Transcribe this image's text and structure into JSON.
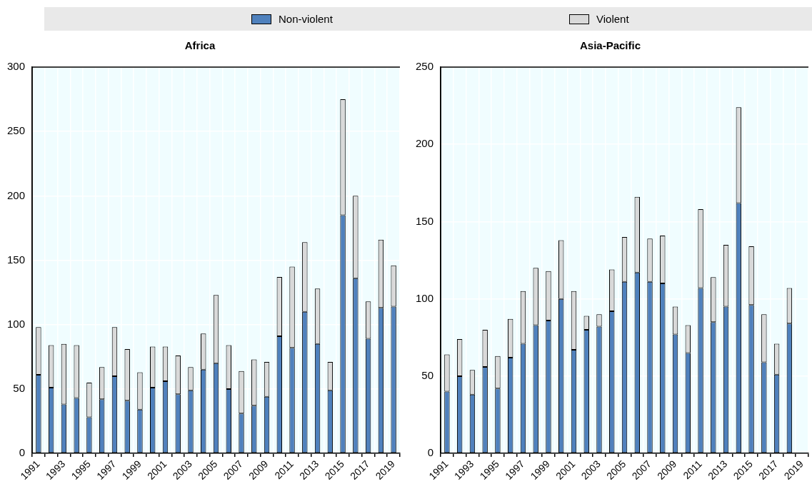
{
  "chart_data": [
    {
      "type": "bar",
      "title": "Africa",
      "stacked": true,
      "grid": true,
      "legend": "top",
      "ylim": [
        0,
        300
      ],
      "yticks": [
        0,
        50,
        100,
        150,
        200,
        250,
        300
      ],
      "categories": [
        "1991",
        null,
        "1993",
        null,
        "1995",
        null,
        "1997",
        null,
        "1999",
        null,
        "2001",
        null,
        "2003",
        null,
        "2005",
        null,
        "2007",
        null,
        "2009",
        null,
        "2011",
        null,
        "2013",
        null,
        "2015",
        null,
        "2017",
        null,
        "2019"
      ],
      "series": [
        {
          "name": "Non-violent",
          "color": "#4f81bd",
          "values": [
            61,
            51,
            38,
            43,
            28,
            42,
            60,
            41,
            34,
            51,
            56,
            46,
            49,
            65,
            70,
            50,
            31,
            37,
            44,
            91,
            82,
            110,
            85,
            49,
            185,
            136,
            89,
            113,
            114
          ]
        },
        {
          "name": "Violent",
          "color": "#d9d9d9",
          "values": [
            37,
            33,
            47,
            41,
            27,
            25,
            38,
            40,
            29,
            32,
            27,
            30,
            18,
            28,
            53,
            34,
            33,
            36,
            27,
            46,
            63,
            54,
            43,
            22,
            90,
            64,
            29,
            53,
            32
          ]
        }
      ]
    },
    {
      "type": "bar",
      "title": "Asia-Pacific",
      "stacked": true,
      "grid": true,
      "legend": "top",
      "ylim": [
        0,
        250
      ],
      "yticks": [
        0,
        50,
        100,
        150,
        200,
        250
      ],
      "categories": [
        "1991",
        null,
        "1993",
        null,
        "1995",
        null,
        "1997",
        null,
        "1999",
        null,
        "2001",
        null,
        "2003",
        null,
        "2005",
        null,
        "2007",
        null,
        "2009",
        null,
        "2011",
        null,
        "2013",
        null,
        "2015",
        null,
        "2017",
        null,
        "2019"
      ],
      "series": [
        {
          "name": "Non-violent",
          "color": "#4f81bd",
          "values": [
            40,
            50,
            38,
            56,
            42,
            62,
            71,
            83,
            86,
            100,
            67,
            80,
            82,
            92,
            111,
            117,
            111,
            110,
            77,
            65,
            107,
            85,
            95,
            162,
            96,
            59,
            51,
            84,
            null
          ]
        },
        {
          "name": "Violent",
          "color": "#d9d9d9",
          "values": [
            24,
            24,
            16,
            24,
            21,
            25,
            34,
            37,
            32,
            38,
            38,
            9,
            8,
            27,
            29,
            49,
            28,
            31,
            18,
            18,
            51,
            29,
            40,
            62,
            38,
            31,
            20,
            23,
            null
          ]
        }
      ]
    }
  ]
}
